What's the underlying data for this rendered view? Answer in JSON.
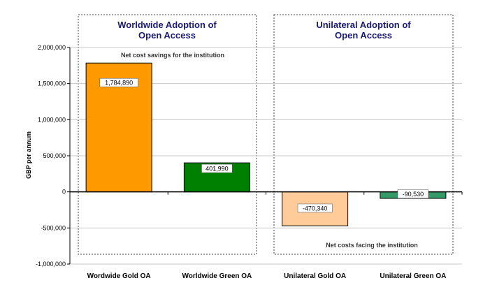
{
  "chart_data": {
    "type": "bar",
    "categories": [
      "Wordwide Gold OA",
      "Worldwide Green OA",
      "Unilateral Gold OA",
      "Unilateral Green OA"
    ],
    "values": [
      1784890,
      401990,
      -470340,
      -90530
    ],
    "data_labels": [
      "1,784,890",
      "401,990",
      "-470,340",
      "-90,530"
    ],
    "bar_colors": [
      "#ff9900",
      "#008000",
      "#ffcc99",
      "#339966"
    ],
    "ylabel": "GBP per annum",
    "ylim": [
      -1000000,
      2000000
    ],
    "yticks": [
      2000000,
      1500000,
      1000000,
      500000,
      0,
      -500000,
      -1000000
    ],
    "ytick_labels": [
      "2,000,000",
      "1,500,000",
      "1,000,000",
      "500,000",
      "0",
      "-500,000",
      "-1,000,000"
    ],
    "grid": true,
    "panels": [
      {
        "title_line1": "Worldwide Adoption of",
        "title_line2": "Open Access"
      },
      {
        "title_line1": "Unilateral Adoption of",
        "title_line2": "Open Access"
      }
    ],
    "annotations": {
      "top": "Net cost savings for the institution",
      "bottom": "Net costs facing the institution"
    }
  }
}
